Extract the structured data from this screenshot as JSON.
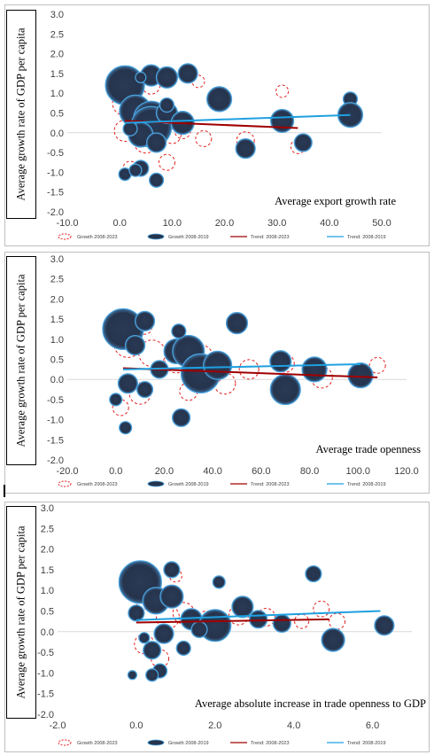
{
  "chart_data": [
    {
      "type": "scatter",
      "title": "",
      "xlabel": "Average export growth rate",
      "ylabel": "Average growth rate of GDP per capita",
      "xlim": [
        -10,
        50
      ],
      "ylim": [
        -2,
        3
      ],
      "xticks": [
        "-10.0",
        "0.0",
        "10.0",
        "20.0",
        "30.0",
        "40.0",
        "50.0"
      ],
      "yticks": [
        "3.0",
        "2.5",
        "2.0",
        "1.5",
        "1.0",
        "0.5",
        "0.0",
        "-0.5",
        "-1.0",
        "-1.5",
        "-2.0"
      ],
      "legend": [
        "Growth 2008-2023",
        "Growth 2008-2019",
        "Trend: 2008-2023",
        "Trend: 2008-2019"
      ],
      "series": [
        {
          "name": "Growth 2008-2023",
          "style": "dashed-circle",
          "points": [
            [
              1,
              0.75,
              14
            ],
            [
              2,
              0.55,
              12
            ],
            [
              3,
              0.35,
              11
            ],
            [
              1,
              0.05,
              12
            ],
            [
              5,
              -0.2,
              14
            ],
            [
              7,
              0.4,
              15
            ],
            [
              8,
              0.15,
              12
            ],
            [
              6,
              1.2,
              10
            ],
            [
              10,
              -0.05,
              10
            ],
            [
              12,
              0.05,
              9
            ],
            [
              16,
              -0.15,
              9
            ],
            [
              24,
              -0.2,
              10
            ],
            [
              31,
              1.05,
              7
            ],
            [
              34,
              -0.35,
              8
            ],
            [
              44,
              0.55,
              8
            ],
            [
              2,
              -0.9,
              8
            ],
            [
              9,
              -0.75,
              9
            ],
            [
              15,
              1.3,
              7
            ]
          ]
        },
        {
          "name": "Growth 2008-2019",
          "style": "bubble",
          "points": [
            [
              1,
              1.2,
              22
            ],
            [
              3,
              0.55,
              18
            ],
            [
              6,
              0.35,
              20
            ],
            [
              6,
              0.15,
              23
            ],
            [
              9,
              0.5,
              12
            ],
            [
              12,
              0.25,
              13
            ],
            [
              4,
              -0.05,
              14
            ],
            [
              7,
              -0.25,
              11
            ],
            [
              6,
              1.45,
              12
            ],
            [
              9,
              1.4,
              12
            ],
            [
              13,
              1.5,
              11
            ],
            [
              19,
              0.85,
              14
            ],
            [
              44,
              0.85,
              8
            ],
            [
              44,
              0.45,
              14
            ],
            [
              31,
              0.3,
              13
            ],
            [
              35,
              -0.25,
              10
            ],
            [
              24,
              -0.4,
              11
            ],
            [
              4,
              -0.9,
              9
            ],
            [
              7,
              -1.2,
              8
            ],
            [
              1,
              -1.05,
              7
            ],
            [
              3,
              -0.95,
              7
            ],
            [
              9,
              0.7,
              8
            ],
            [
              4,
              1.4,
              6
            ],
            [
              2,
              0.1,
              8
            ]
          ]
        }
      ],
      "trends": [
        {
          "name": "Trend: 2008-2023",
          "x": [
            1,
            34
          ],
          "y": [
            0.3,
            0.12
          ]
        },
        {
          "name": "Trend: 2008-2019",
          "x": [
            1,
            44
          ],
          "y": [
            0.25,
            0.45
          ]
        }
      ]
    },
    {
      "type": "scatter",
      "title": "",
      "xlabel": "Average trade openness",
      "ylabel": "Average growth rate of GDP per capita",
      "xlim": [
        -20,
        120
      ],
      "ylim": [
        -2,
        3
      ],
      "xticks": [
        "-20.0",
        "0.0",
        "20.0",
        "40.0",
        "60.0",
        "80.0",
        "100.0",
        "120.0"
      ],
      "yticks": [
        "3.0",
        "2.5",
        "2.0",
        "1.5",
        "1.0",
        "0.5",
        "0.0",
        "-0.5",
        "-1.0",
        "-1.5",
        "-2.0"
      ],
      "legend": [
        "Growth 2008-2023",
        "Growth 2008-2019",
        "Trend: 2008-2023",
        "Trend: 2008-2019"
      ],
      "series": [
        {
          "name": "Growth 2008-2023",
          "style": "dashed-circle",
          "points": [
            [
              5,
              0.9,
              16
            ],
            [
              15,
              0.65,
              15
            ],
            [
              25,
              0.45,
              13
            ],
            [
              35,
              0.55,
              14
            ],
            [
              45,
              -0.1,
              12
            ],
            [
              40,
              0.2,
              13
            ],
            [
              55,
              0.25,
              11
            ],
            [
              70,
              0.4,
              10
            ],
            [
              85,
              0.05,
              12
            ],
            [
              108,
              0.35,
              9
            ],
            [
              10,
              -0.35,
              12
            ],
            [
              30,
              -0.3,
              10
            ],
            [
              2,
              -0.7,
              9
            ],
            [
              12,
              1.3,
              8
            ]
          ]
        },
        {
          "name": "Growth 2008-2019",
          "style": "bubble",
          "points": [
            [
              3,
              1.25,
              23
            ],
            [
              12,
              1.45,
              11
            ],
            [
              25,
              0.7,
              14
            ],
            [
              30,
              0.7,
              18
            ],
            [
              35,
              0.15,
              22
            ],
            [
              42,
              0.35,
              16
            ],
            [
              26,
              1.2,
              8
            ],
            [
              50,
              1.4,
              12
            ],
            [
              8,
              0.85,
              11
            ],
            [
              18,
              0.25,
              10
            ],
            [
              5,
              -0.1,
              11
            ],
            [
              12,
              -0.25,
              9
            ],
            [
              0,
              -0.5,
              7
            ],
            [
              4,
              -1.2,
              7
            ],
            [
              27,
              -0.95,
              10
            ],
            [
              68,
              0.45,
              12
            ],
            [
              82,
              0.25,
              14
            ],
            [
              70,
              -0.25,
              17
            ],
            [
              101,
              0.1,
              14
            ]
          ]
        }
      ],
      "trends": [
        {
          "name": "Trend: 2008-2023",
          "x": [
            3,
            108
          ],
          "y": [
            0.28,
            0.05
          ]
        },
        {
          "name": "Trend: 2008-2019",
          "x": [
            3,
            101
          ],
          "y": [
            0.25,
            0.38
          ]
        }
      ]
    },
    {
      "type": "scatter",
      "title": "",
      "xlabel": "Average absolute increase in trade openness to GDP",
      "ylabel": "Average growth rate of GDP per capita",
      "xlim": [
        -2,
        7
      ],
      "ylim": [
        -2,
        3
      ],
      "xticks": [
        "-2.0",
        "0.0",
        "2.0",
        "4.0",
        "6.0"
      ],
      "yticks": [
        "3.0",
        "2.5",
        "2.0",
        "1.5",
        "1.0",
        "0.5",
        "0.0",
        "-0.5",
        "-1.0",
        "-1.5",
        "-2.0"
      ],
      "legend": [
        "Growth 2008-2023",
        "Growth 2008-2019",
        "Trend: 2008-2023",
        "Trend: 2008-2019"
      ],
      "series": [
        {
          "name": "Growth 2008-2023",
          "style": "dashed-circle",
          "points": [
            [
              0.3,
              0.9,
              17
            ],
            [
              0.8,
              0.35,
              13
            ],
            [
              1.2,
              0.45,
              12
            ],
            [
              1.8,
              0.2,
              14
            ],
            [
              2.6,
              0.4,
              11
            ],
            [
              3.3,
              0.35,
              10
            ],
            [
              4.7,
              0.55,
              9
            ],
            [
              5.1,
              0.25,
              9
            ],
            [
              0.2,
              -0.3,
              11
            ],
            [
              0.6,
              -0.65,
              10
            ],
            [
              4.2,
              0.25,
              8
            ],
            [
              1.0,
              1.35,
              7
            ]
          ]
        },
        {
          "name": "Growth 2008-2019",
          "style": "bubble",
          "points": [
            [
              0.1,
              1.2,
              24
            ],
            [
              0.5,
              0.75,
              15
            ],
            [
              0.9,
              0.85,
              13
            ],
            [
              1.4,
              0.3,
              12
            ],
            [
              2.0,
              0.15,
              18
            ],
            [
              2.1,
              1.2,
              7
            ],
            [
              2.7,
              0.6,
              12
            ],
            [
              3.1,
              0.3,
              10
            ],
            [
              3.7,
              0.2,
              10
            ],
            [
              4.5,
              1.4,
              9
            ],
            [
              5.0,
              -0.2,
              13
            ],
            [
              6.3,
              0.15,
              11
            ],
            [
              0.9,
              1.5,
              9
            ],
            [
              0.4,
              -0.45,
              10
            ],
            [
              0.7,
              -0.05,
              11
            ],
            [
              1.2,
              -0.4,
              8
            ],
            [
              0.6,
              -0.95,
              8
            ],
            [
              0.4,
              -1.05,
              7
            ],
            [
              -0.1,
              -1.05,
              5
            ],
            [
              0.0,
              0.45,
              9
            ],
            [
              1.6,
              0.05,
              9
            ],
            [
              0.2,
              -0.15,
              6
            ]
          ]
        }
      ],
      "trends": [
        {
          "name": "Trend: 2008-2023",
          "x": [
            0,
            4.9
          ],
          "y": [
            0.22,
            0.3
          ]
        },
        {
          "name": "Trend: 2008-2019",
          "x": [
            0,
            6.2
          ],
          "y": [
            0.28,
            0.5
          ]
        }
      ]
    }
  ]
}
